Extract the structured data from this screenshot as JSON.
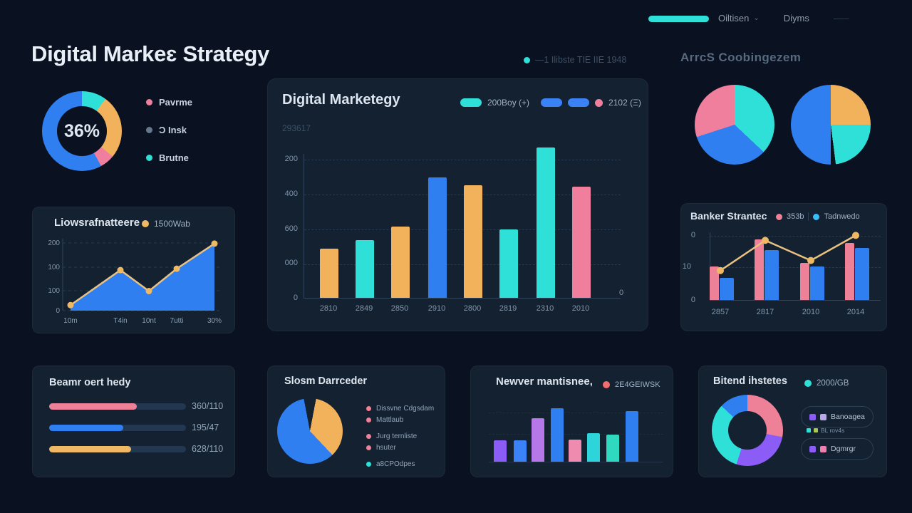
{
  "colors": {
    "background": "#0a1120",
    "panel": "#132130",
    "teal": "#2fe0d8",
    "blue": "#2f7ff0",
    "orange": "#f2b25c",
    "gold_line": "#e9c180",
    "pink": "#f07f9d",
    "rose": "#ee8098",
    "purple": "#8b5cf6",
    "violet": "#b678e8"
  },
  "header": {
    "items": [
      {
        "label": "Oiltisen",
        "chevron": "⌄"
      },
      {
        "label": "Diyms",
        "chevron": ""
      },
      {
        "label": "–––",
        "chevron": ""
      }
    ]
  },
  "page_title": "Digital Markeɛ Strategy",
  "top_legend_label": "—1 Ilibste TIE IIE 1948",
  "top_right_label": "ArrcS Coobingezem",
  "donut36": {
    "center_label": "36%",
    "chart_data": {
      "type": "pie",
      "segments": [
        {
          "name": "teal",
          "color": "#2fe0d8",
          "value": 10
        },
        {
          "name": "orange",
          "color": "#f2b25c",
          "value": 26
        },
        {
          "name": "pink",
          "color": "#f07f9d",
          "value": 6
        },
        {
          "name": "blue",
          "color": "#2f7ff0",
          "value": 58
        }
      ]
    },
    "legend": [
      {
        "dot": "#f07f9d",
        "label": "Pavrme"
      },
      {
        "dot": "#66788c",
        "label": "Ͻ Insk"
      },
      {
        "dot": "#2fe0d8",
        "label": "Brutne"
      }
    ]
  },
  "area_panel": {
    "title": "Liowsrafnatteere",
    "legend_dot": "#efb964",
    "legend_label": "1500Wab",
    "chart_data": {
      "type": "area",
      "x_labels": [
        "10m",
        "T4in",
        "10nt",
        "7utti",
        "30%"
      ],
      "y_ticks": [
        "200",
        "100",
        "100",
        "0"
      ],
      "values": [
        24,
        176,
        85,
        182,
        291
      ],
      "ylim": [
        0,
        300
      ],
      "fill_color": "#2f7ff0",
      "line_color": "#e9c180",
      "dot_color": "#efb964"
    }
  },
  "main_panel": {
    "title": "Digital Marketegy",
    "subtitle": "293617",
    "legend": [
      {
        "shape": "pill",
        "color": "#2fe0d8",
        "label": "200Boy (+)"
      },
      {
        "shape": "pill",
        "color": "#3b82f6",
        "label": ""
      },
      {
        "shape": "pill",
        "color": "#3b82f6",
        "label": ""
      },
      {
        "shape": "dot",
        "color": "#f07f9d",
        "label": "2102 (Ξ)"
      }
    ],
    "chart_data": {
      "type": "bar",
      "categories": [
        "2810",
        "2849",
        "2850",
        "2910",
        "2800",
        "2819",
        "2310",
        "2010"
      ],
      "values": [
        280,
        330,
        410,
        690,
        645,
        390,
        860,
        635
      ],
      "bar_colors": [
        "#f2b25c",
        "#2fe0d8",
        "#f2b25c",
        "#2f7ff0",
        "#f2b25c",
        "#2fe0d8",
        "#2fe0d8",
        "#f07f9d"
      ],
      "y_ticks": [
        "200",
        "400",
        "600",
        "000",
        "0"
      ],
      "right_axis_label": "0",
      "ylim": [
        0,
        880
      ]
    }
  },
  "pies_top_right": {
    "chart_data": [
      {
        "type": "pie",
        "segments": [
          {
            "name": "teal",
            "color": "#2fe0d8",
            "value": 37
          },
          {
            "name": "blue",
            "color": "#2f7ff0",
            "value": 33
          },
          {
            "name": "pink",
            "color": "#f07f9d",
            "value": 30
          }
        ]
      },
      {
        "type": "pie",
        "segments": [
          {
            "name": "orange",
            "color": "#f2b25c",
            "value": 25
          },
          {
            "name": "teal",
            "color": "#2fe0d8",
            "value": 23
          },
          {
            "name": "gap",
            "color": "#0a1120",
            "value": 2
          },
          {
            "name": "blue",
            "color": "#2f7ff0",
            "value": 50
          }
        ]
      }
    ]
  },
  "banker_panel": {
    "title": "Banker Stranteс",
    "legend": [
      {
        "dot": "#ee8098",
        "label": "353b"
      },
      {
        "dot": "#38bdf8",
        "label": "Tadnwedo"
      }
    ],
    "chart_data": {
      "type": "bar+line",
      "categories": [
        "2857",
        "2817",
        "2010",
        "2014"
      ],
      "series": [
        {
          "name": "rose-bars",
          "color": "#ee8098",
          "values": [
            10,
            18,
            11,
            17
          ]
        },
        {
          "name": "blue-bars",
          "color": "#2f7ff0",
          "values": [
            6.5,
            15,
            10,
            15.5
          ]
        },
        {
          "name": "trend-line",
          "color": "#e9c180",
          "values": [
            9,
            18,
            12,
            19.5
          ]
        }
      ],
      "y_ticks": [
        "0",
        "10",
        "0"
      ]
    }
  },
  "progress_panel": {
    "title": "Beamr oert hedy",
    "rows": [
      {
        "color": "#ee8098",
        "percent": 64,
        "label": "360/110"
      },
      {
        "color": "#2f7ff0",
        "percent": 54,
        "label": "195/47"
      },
      {
        "color": "#efb964",
        "percent": 60,
        "label": "628/110"
      }
    ]
  },
  "slosm_panel": {
    "title": "Slosm Darrceder",
    "chart_data": {
      "type": "pie",
      "segments": [
        {
          "name": "gap",
          "color": "#132130",
          "value": 3
        },
        {
          "name": "orange",
          "color": "#f2b25c",
          "value": 35
        },
        {
          "name": "blue",
          "color": "#2f7ff0",
          "value": 59
        },
        {
          "name": "gap2",
          "color": "#132130",
          "value": 3
        }
      ]
    },
    "legend": [
      {
        "dot": "#ee8098",
        "label": "Dissvne Cdgsdam"
      },
      {
        "dot": "#ee8098",
        "label": "Mattlaub"
      },
      {
        "dot": "#ee8098",
        "label": "Jurg ternliste"
      },
      {
        "dot": "#ee8098",
        "label": "hsuter"
      },
      {
        "dot": "#2fe0d8",
        "label": "a8CPOdpes"
      }
    ]
  },
  "newver_panel": {
    "title": "Newver mantisnee,",
    "legend_dot": "#f26d6d",
    "legend_label": "2E4GEIWSK",
    "chart_data": {
      "type": "bar",
      "values": [
        40,
        40,
        81,
        100,
        41,
        53,
        51,
        95
      ],
      "bar_colors": [
        "#8b5cf6",
        "#3b82f6",
        "#b678e8",
        "#2f7ff0",
        "#ee8bae",
        "#2dd4da",
        "#2fd9c0",
        "#2f7ff0"
      ],
      "ylim": [
        0,
        100
      ]
    }
  },
  "bitend_panel": {
    "title": "Bitend ihstetes",
    "legend_dot": "#2fe0d8",
    "legend_label": "2000/GB",
    "chart_data": {
      "type": "donut",
      "segments": [
        {
          "name": "pink",
          "color": "#ee8098",
          "value": 28
        },
        {
          "name": "purple",
          "color": "#8b5cf6",
          "value": 27
        },
        {
          "name": "teal",
          "color": "#2fe0d8",
          "value": 32
        },
        {
          "name": "blue",
          "color": "#2f7ff0",
          "value": 13
        }
      ]
    },
    "chips": [
      {
        "icons": [
          "#8b5cf6",
          "#b9a7e8"
        ],
        "label": "Banoagea"
      },
      {
        "icons": [
          "#8b5cf6",
          "#ef7fb0"
        ],
        "label": "Dgmrgr"
      }
    ],
    "chip_subrow": {
      "icons": [
        "#2fe0d8",
        "#a7c94f"
      ],
      "label": "BL rov4s"
    }
  }
}
